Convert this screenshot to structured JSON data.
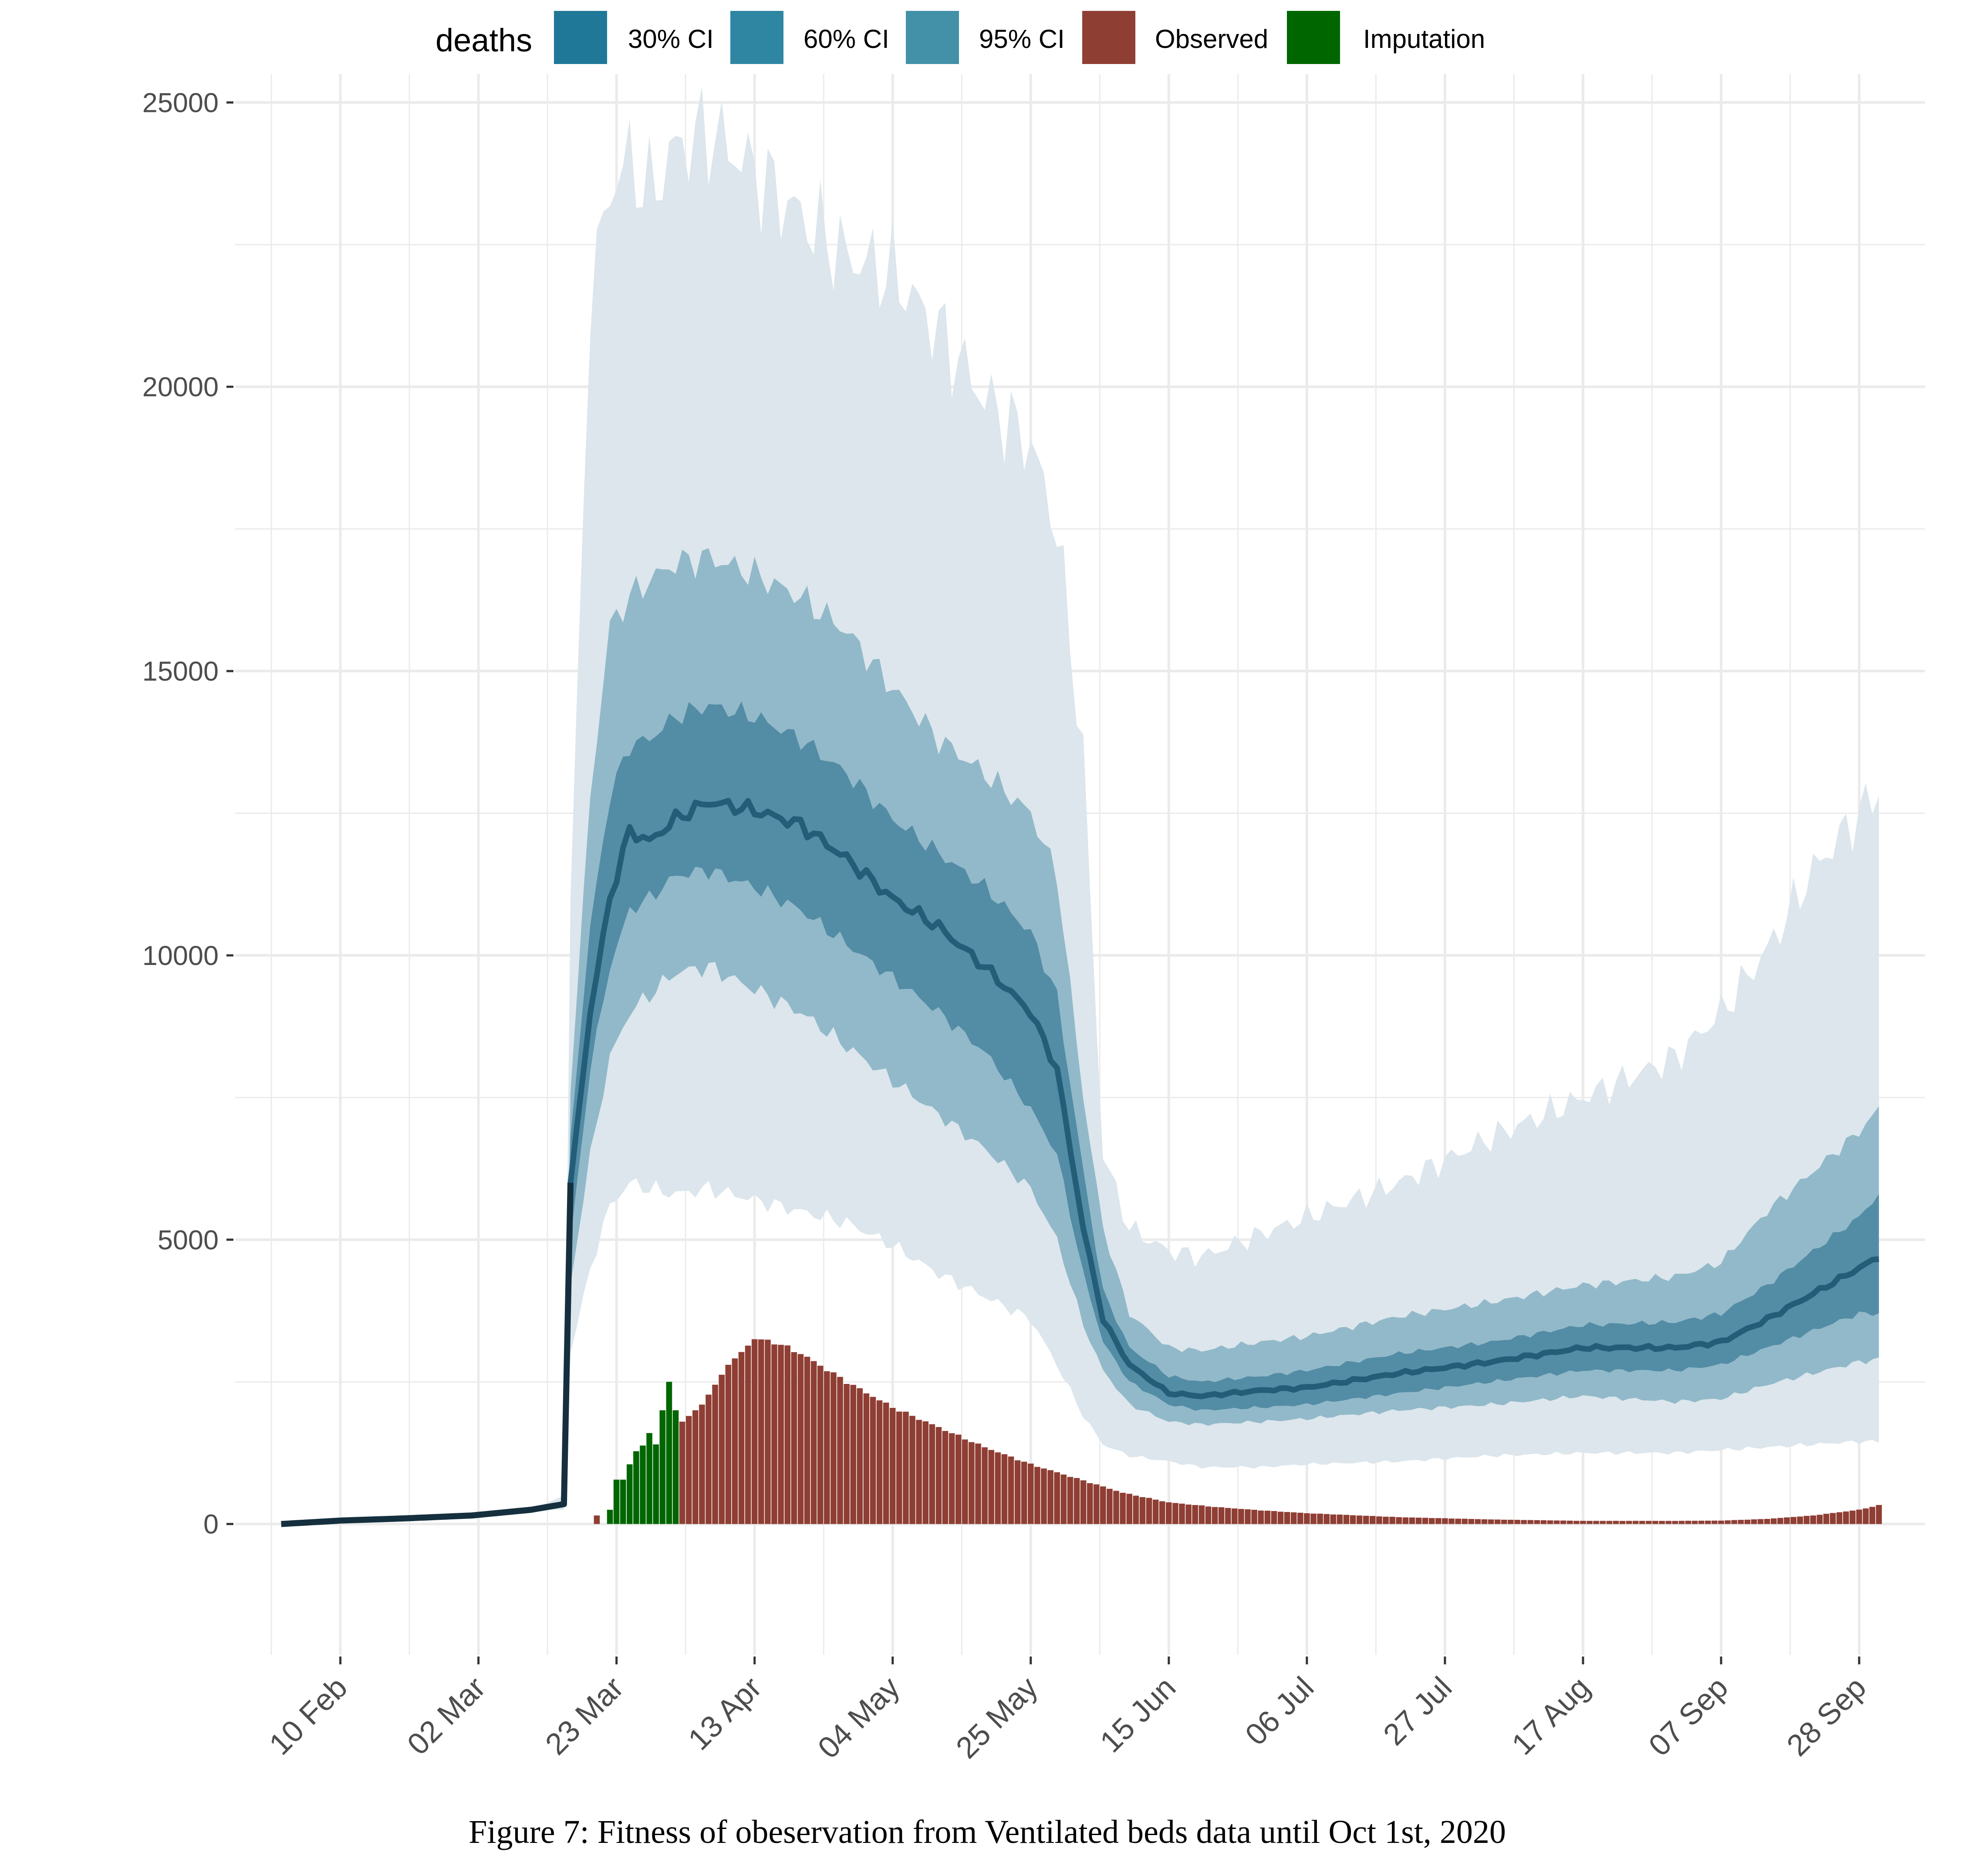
{
  "chart_data": {
    "type": "area",
    "title": "",
    "xlabel": "",
    "ylabel": "",
    "caption": "Figure 7: Fitness of obeservation from Ventilated beds data until Oct 1st, 2020",
    "x_start": "2020-02-01",
    "x_end": "2020-10-01",
    "xlim": [
      "2020-01-25",
      "2020-10-08"
    ],
    "ylim": [
      -2300,
      25500
    ],
    "y_ticks": [
      0,
      5000,
      10000,
      15000,
      20000,
      25000
    ],
    "y_tick_labels": [
      "0",
      "5000",
      "10000",
      "15000",
      "20000",
      "25000"
    ],
    "x_ticks": [
      "2020-02-10",
      "2020-03-02",
      "2020-03-23",
      "2020-04-13",
      "2020-05-04",
      "2020-05-25",
      "2020-06-15",
      "2020-07-06",
      "2020-07-27",
      "2020-08-17",
      "2020-09-07",
      "2020-09-28"
    ],
    "x_tick_labels": [
      "10 Feb",
      "02 Mar",
      "23 Mar",
      "13 Apr",
      "04 May",
      "25 May",
      "15 Jun",
      "06 Jul",
      "27 Jul",
      "17 Aug",
      "07 Sep",
      "28 Sep"
    ],
    "grid": true,
    "legend": {
      "position": "top",
      "title": "deaths",
      "items": [
        {
          "label": "30% CI",
          "color": "#1f7898"
        },
        {
          "label": "60% CI",
          "color": "#2f86a3"
        },
        {
          "label": "95% CI",
          "color": "#4390a9"
        },
        {
          "label": "Observed",
          "color": "#8f3e34"
        },
        {
          "label": "Imputation",
          "color": "#006600"
        }
      ]
    },
    "colors": {
      "ci95": "#dce6ec",
      "ci60": "#92b9c9",
      "ci30": "#538ca5",
      "median": "#245d78",
      "observed": "#8f3e34",
      "imputation": "#006600",
      "grid": "#ebebeb"
    },
    "model_knots": {
      "dates": [
        "2020-02-01",
        "2020-02-10",
        "2020-02-20",
        "2020-03-01",
        "2020-03-10",
        "2020-03-15",
        "2020-03-16",
        "2020-03-19",
        "2020-03-22",
        "2020-03-25",
        "2020-03-28",
        "2020-04-01",
        "2020-04-06",
        "2020-04-13",
        "2020-04-20",
        "2020-04-27",
        "2020-05-04",
        "2020-05-11",
        "2020-05-18",
        "2020-05-25",
        "2020-05-29",
        "2020-06-02",
        "2020-06-05",
        "2020-06-09",
        "2020-06-15",
        "2020-06-20",
        "2020-06-29",
        "2020-07-06",
        "2020-07-20",
        "2020-08-03",
        "2020-08-17",
        "2020-08-31",
        "2020-09-07",
        "2020-09-14",
        "2020-09-21",
        "2020-09-28",
        "2020-10-01"
      ],
      "median": [
        0,
        60,
        100,
        150,
        250,
        350,
        6000,
        9000,
        11000,
        12200,
        12000,
        12400,
        12700,
        12550,
        12300,
        11700,
        11000,
        10500,
        9800,
        9000,
        8000,
        5200,
        3600,
        2800,
        2300,
        2250,
        2350,
        2400,
        2650,
        2850,
        3100,
        3100,
        3200,
        3600,
        4050,
        4500,
        4700
      ],
      "ci30_low": [
        0,
        60,
        100,
        150,
        250,
        330,
        5000,
        8000,
        9800,
        10800,
        11000,
        11400,
        11500,
        11200,
        10800,
        10200,
        9600,
        9000,
        8300,
        7300,
        6500,
        4400,
        3200,
        2500,
        2100,
        2000,
        2050,
        2100,
        2300,
        2500,
        2700,
        2700,
        2800,
        3100,
        3400,
        3700,
        3700
      ],
      "ci30_high": [
        0,
        60,
        100,
        150,
        250,
        360,
        6800,
        10500,
        12800,
        13700,
        13800,
        14200,
        14400,
        14200,
        13800,
        13200,
        12400,
        11800,
        11200,
        10400,
        9300,
        6200,
        4100,
        3100,
        2600,
        2500,
        2600,
        2700,
        3000,
        3200,
        3500,
        3550,
        3700,
        4200,
        4800,
        5400,
        5800
      ],
      "ci60_low": [
        0,
        60,
        100,
        150,
        250,
        300,
        4200,
        6500,
        8200,
        9000,
        9300,
        9700,
        9800,
        9400,
        9000,
        8400,
        7800,
        7200,
        6600,
        5900,
        5000,
        3500,
        2700,
        2100,
        1800,
        1750,
        1800,
        1850,
        2000,
        2100,
        2250,
        2150,
        2200,
        2450,
        2650,
        2850,
        2900
      ],
      "ci60_high": [
        0,
        60,
        100,
        150,
        250,
        400,
        7600,
        12800,
        15800,
        16300,
        16600,
        16900,
        17000,
        16700,
        16300,
        15700,
        14700,
        13800,
        13200,
        12500,
        11400,
        7500,
        5200,
        3700,
        3100,
        3050,
        3200,
        3300,
        3650,
        3900,
        4200,
        4350,
        4600,
        5500,
        6200,
        6900,
        7300
      ],
      "ci95_low": [
        0,
        60,
        100,
        150,
        250,
        250,
        3000,
        4500,
        5600,
        6000,
        5900,
        5800,
        5900,
        5700,
        5500,
        5300,
        4900,
        4400,
        4000,
        3600,
        2800,
        1900,
        1400,
        1200,
        1100,
        1000,
        1000,
        1050,
        1100,
        1200,
        1250,
        1250,
        1300,
        1350,
        1400,
        1450,
        1450
      ],
      "ci95_high": [
        0,
        60,
        100,
        150,
        250,
        500,
        11000,
        21500,
        23500,
        24000,
        23400,
        24200,
        24500,
        23800,
        23000,
        22300,
        22000,
        21000,
        19800,
        19000,
        17500,
        13500,
        6500,
        5200,
        4800,
        4700,
        5100,
        5400,
        6000,
        6800,
        7500,
        8200,
        9000,
        10100,
        11500,
        12500,
        12900
      ]
    },
    "observed_knots": {
      "dates": [
        "2020-03-20",
        "2020-03-21",
        "2020-03-22",
        "2020-03-25",
        "2020-03-29",
        "2020-04-05",
        "2020-04-09",
        "2020-04-13",
        "2020-04-16",
        "2020-04-20",
        "2020-04-27",
        "2020-05-04",
        "2020-05-11",
        "2020-05-18",
        "2020-05-25",
        "2020-06-01",
        "2020-06-08",
        "2020-06-15",
        "2020-06-22",
        "2020-06-29",
        "2020-07-06",
        "2020-07-20",
        "2020-08-03",
        "2020-08-17",
        "2020-08-31",
        "2020-09-07",
        "2020-09-14",
        "2020-09-21",
        "2020-09-28",
        "2020-10-01"
      ],
      "values": [
        150,
        0,
        200,
        780,
        1400,
        2100,
        2800,
        3250,
        3200,
        3000,
        2500,
        2050,
        1700,
        1350,
        1050,
        800,
        550,
        380,
        300,
        240,
        190,
        120,
        80,
        55,
        55,
        60,
        90,
        150,
        250,
        330
      ]
    },
    "imputation": {
      "dates": [
        "2020-03-22",
        "2020-03-23",
        "2020-03-24",
        "2020-03-25",
        "2020-03-26",
        "2020-03-27",
        "2020-03-28",
        "2020-03-29",
        "2020-03-30",
        "2020-03-31",
        "2020-04-01"
      ],
      "values": [
        250,
        780,
        780,
        1050,
        1280,
        1380,
        1600,
        1400,
        2000,
        2500,
        2000
      ]
    }
  }
}
